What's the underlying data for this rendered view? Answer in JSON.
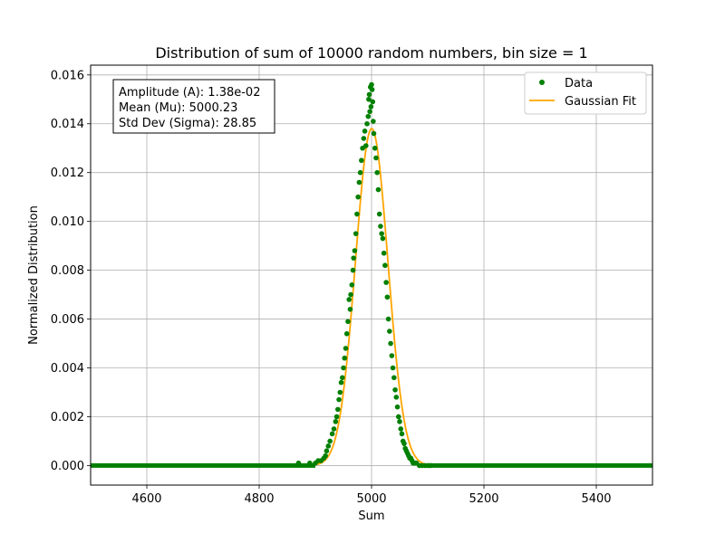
{
  "chart_data": {
    "type": "scatter",
    "title": "Distribution of sum of 10000 random numbers, bin size = 1",
    "xlabel": "Sum",
    "ylabel": "Normalized Distribution",
    "xlim": [
      4500,
      5500
    ],
    "ylim": [
      -0.0008,
      0.0164
    ],
    "xticks": [
      4600,
      4800,
      5000,
      5200,
      5400
    ],
    "xtick_labels": [
      "4600",
      "4800",
      "5000",
      "5200",
      "5400"
    ],
    "yticks": [
      0,
      0.002,
      0.004,
      0.006,
      0.008,
      0.01,
      0.012,
      0.014,
      0.016
    ],
    "ytick_labels": [
      "0.000",
      "0.002",
      "0.004",
      "0.006",
      "0.008",
      "0.010",
      "0.012",
      "0.014",
      "0.016"
    ],
    "grid": true,
    "legend": {
      "placement": "upper right",
      "entries": [
        {
          "label": "Data",
          "color": "#008000",
          "marker": "point"
        },
        {
          "label": "Gaussian Fit",
          "color": "#ffa500",
          "marker": "line"
        }
      ]
    },
    "annotation": {
      "lines": [
        "Amplitude (A): 1.38e-02",
        "Mean (Mu): 5000.23",
        "Std Dev (Sigma): 28.85"
      ],
      "placement": "upper left"
    },
    "series": [
      {
        "name": "Data",
        "kind": "scatter",
        "color": "#008000",
        "x": [
          4870,
          4890,
          4900,
          4905,
          4910,
          4915,
          4918,
          4920,
          4923,
          4926,
          4930,
          4933,
          4936,
          4938,
          4940,
          4942,
          4944,
          4946,
          4948,
          4950,
          4952,
          4954,
          4956,
          4958,
          4960,
          4962,
          4963,
          4965,
          4967,
          4968,
          4970,
          4972,
          4974,
          4976,
          4978,
          4980,
          4982,
          4984,
          4986,
          4988,
          4990,
          4992,
          4994,
          4995,
          4996,
          4997,
          4998,
          4999,
          5000,
          5001,
          5002,
          5003,
          5004,
          5006,
          5008,
          5010,
          5012,
          5014,
          5016,
          5018,
          5020,
          5022,
          5024,
          5026,
          5028,
          5030,
          5032,
          5034,
          5036,
          5038,
          5040,
          5042,
          5044,
          5046,
          5048,
          5050,
          5052,
          5054,
          5056,
          5058,
          5060,
          5062,
          5064,
          5066,
          5068,
          5070,
          5072,
          5074,
          5076,
          5078,
          5080,
          5085,
          5090,
          5095,
          5100,
          5105
        ],
        "y": [
          0.0001,
          0.0001,
          0.0001,
          0.0002,
          0.0002,
          0.0003,
          0.0004,
          0.0006,
          0.0008,
          0.001,
          0.0013,
          0.0015,
          0.0018,
          0.002,
          0.0023,
          0.0027,
          0.003,
          0.0034,
          0.0036,
          0.004,
          0.0044,
          0.0048,
          0.0054,
          0.0059,
          0.0068,
          0.0064,
          0.007,
          0.0074,
          0.008,
          0.0085,
          0.0088,
          0.0095,
          0.0103,
          0.011,
          0.0116,
          0.012,
          0.0125,
          0.013,
          0.0134,
          0.0137,
          0.0131,
          0.014,
          0.0143,
          0.015,
          0.0152,
          0.0145,
          0.0155,
          0.0147,
          0.0156,
          0.0154,
          0.0149,
          0.0141,
          0.0136,
          0.013,
          0.0126,
          0.012,
          0.0113,
          0.0103,
          0.0098,
          0.0095,
          0.0093,
          0.0087,
          0.0082,
          0.0075,
          0.0069,
          0.006,
          0.0055,
          0.005,
          0.0045,
          0.004,
          0.0036,
          0.0031,
          0.0028,
          0.0024,
          0.002,
          0.0018,
          0.0015,
          0.0013,
          0.001,
          0.0009,
          0.0007,
          0.0006,
          0.0005,
          0.0004,
          0.0003,
          0.0003,
          0.0002,
          0.0001,
          0.0001,
          0.0001,
          0.0001,
          0.0,
          0.0,
          0.0,
          0.0,
          0.0
        ]
      },
      {
        "name": "Gaussian Fit",
        "kind": "line",
        "color": "#ffa500",
        "amplitude": 0.0138,
        "mean": 5000.23,
        "sigma": 28.85
      }
    ]
  }
}
